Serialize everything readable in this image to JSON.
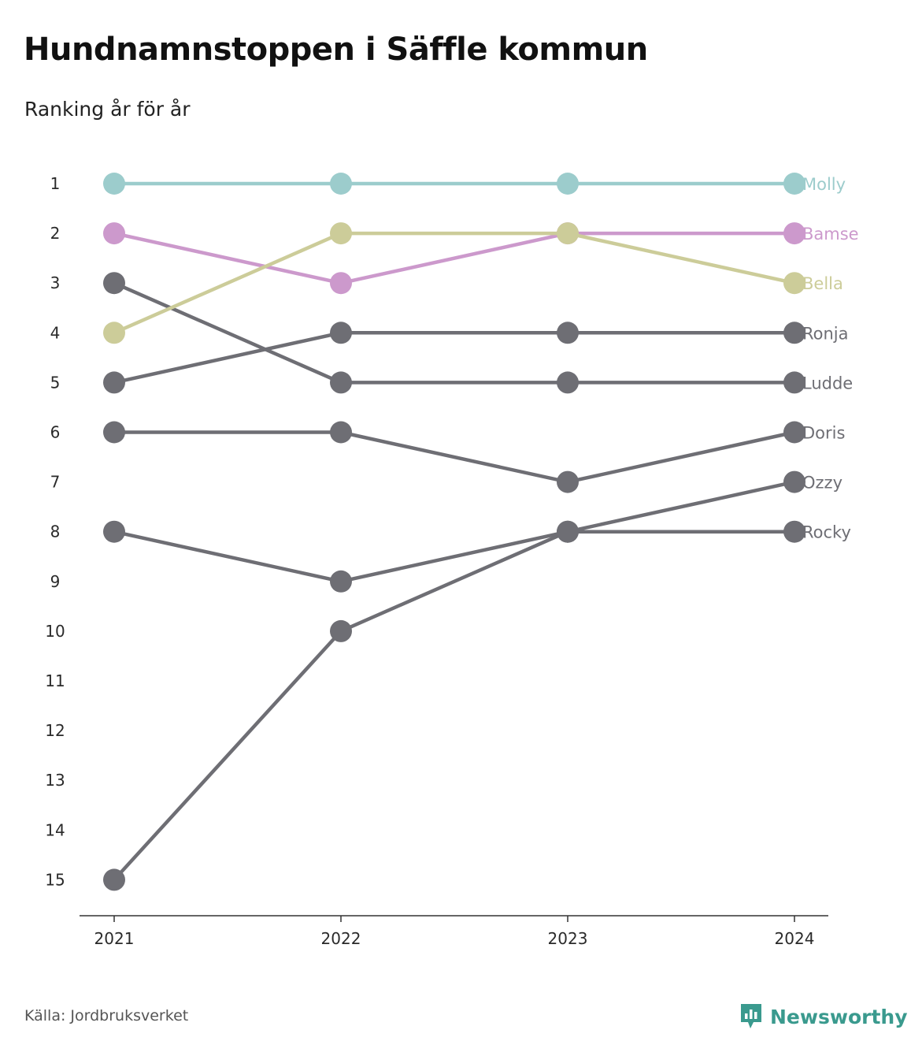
{
  "title": "Hundnamnstoppen i Säffle kommun",
  "subtitle": "Ranking år för år",
  "source": "Källa: Jordbruksverket",
  "brand": {
    "name": "Newsworthy",
    "icon": "newsworthy-logo-icon",
    "color": "#3a9a8e"
  },
  "colors": {
    "Molly": "#9ccccc",
    "Bamse": "#cc99cc",
    "Bella": "#cccc99",
    "other": "#6e6e74",
    "axis": "#333333"
  },
  "chart_data": {
    "type": "line",
    "title": "Hundnamnstoppen i Säffle kommun",
    "subtitle": "Ranking år för år",
    "x": [
      "2021",
      "2022",
      "2023",
      "2024"
    ],
    "y_ticks": [
      "1",
      "2",
      "3",
      "4",
      "5",
      "6",
      "7",
      "8",
      "9",
      "10",
      "11",
      "12",
      "13",
      "14",
      "15"
    ],
    "ylim": [
      1,
      15
    ],
    "y_reversed": true,
    "grid": false,
    "legend": "end-labels",
    "series": [
      {
        "name": "Molly",
        "values": [
          1,
          1,
          1,
          1
        ]
      },
      {
        "name": "Bamse",
        "values": [
          2,
          3,
          2,
          2
        ]
      },
      {
        "name": "Bella",
        "values": [
          4,
          2,
          2,
          3
        ]
      },
      {
        "name": "Ronja",
        "values": [
          5,
          4,
          4,
          4
        ]
      },
      {
        "name": "Ludde",
        "values": [
          3,
          5,
          5,
          5
        ]
      },
      {
        "name": "Doris",
        "values": [
          6,
          6,
          7,
          6
        ]
      },
      {
        "name": "Ozzy",
        "values": [
          15,
          10,
          8,
          7
        ]
      },
      {
        "name": "Rocky",
        "values": [
          8,
          9,
          8,
          8
        ]
      }
    ]
  }
}
